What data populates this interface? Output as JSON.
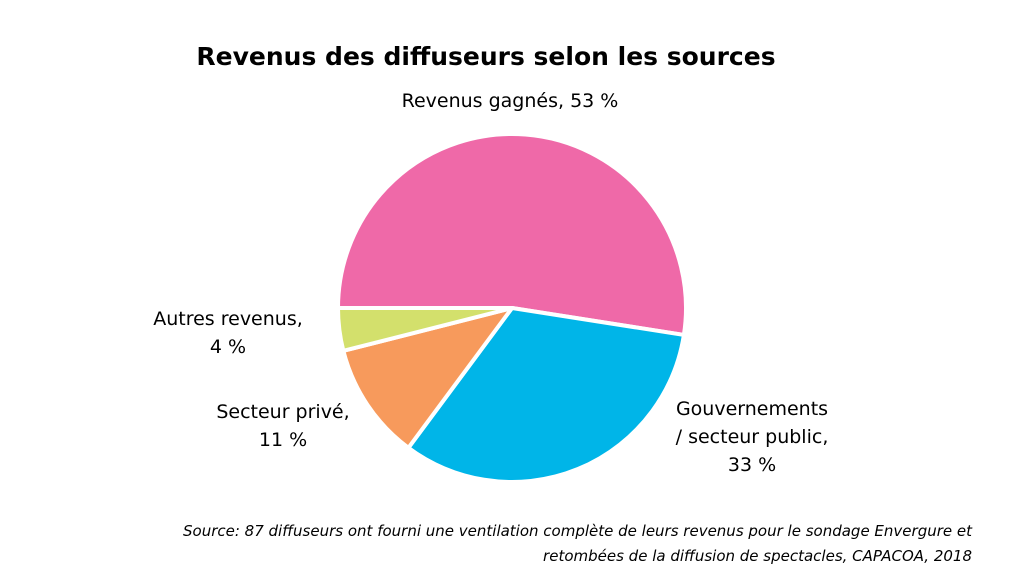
{
  "chart_data": {
    "type": "pie",
    "title": "Revenus des diffuseurs selon les sources",
    "categories": [
      "Revenus gagnés,",
      "Gouvernements\n/ secteur public,",
      "Secteur privé,",
      "Autres revenus,"
    ],
    "values": [
      53,
      33,
      11,
      4
    ],
    "value_labels": [
      "53 %",
      "33 %",
      "11 %",
      "4 %"
    ],
    "colors": [
      "#ef69a8",
      "#00b5e8",
      "#f79a5c",
      "#d3e06c"
    ],
    "source": "Source: 87 diffuseurs ont fourni une ventilation complète de leurs revenus pour le sondage Envergure et\nretombées de la diffusion de spectacles, CAPACOA, 2018"
  }
}
